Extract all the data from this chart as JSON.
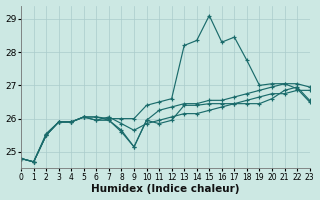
{
  "xlabel": "Humidex (Indice chaleur)",
  "bg_color": "#cce8e3",
  "grid_color": "#aacccc",
  "line_color": "#1a6b6b",
  "xlim": [
    0,
    23
  ],
  "ylim": [
    24.5,
    29.4
  ],
  "yticks": [
    25,
    26,
    27,
    28,
    29
  ],
  "xticks": [
    0,
    1,
    2,
    3,
    4,
    5,
    6,
    7,
    8,
    9,
    10,
    11,
    12,
    13,
    14,
    15,
    16,
    17,
    18,
    19,
    20,
    21,
    22,
    23
  ],
  "series": [
    [
      24.8,
      24.7,
      25.5,
      25.9,
      25.9,
      26.05,
      26.05,
      26.0,
      26.0,
      26.0,
      26.4,
      26.5,
      26.6,
      28.2,
      28.35,
      29.1,
      28.3,
      28.45,
      27.75,
      27.0,
      27.05,
      27.05,
      26.9,
      26.5
    ],
    [
      24.8,
      24.7,
      25.5,
      25.9,
      25.9,
      26.05,
      26.05,
      25.95,
      25.65,
      25.15,
      25.95,
      25.85,
      25.95,
      26.4,
      26.4,
      26.45,
      26.45,
      26.45,
      26.45,
      26.45,
      26.6,
      26.85,
      26.95,
      26.55
    ],
    [
      24.8,
      24.7,
      25.5,
      25.9,
      25.9,
      26.05,
      25.95,
      25.95,
      25.6,
      25.15,
      25.95,
      26.25,
      26.35,
      26.45,
      26.45,
      26.55,
      26.55,
      26.65,
      26.75,
      26.85,
      26.95,
      27.05,
      27.05,
      26.95
    ],
    [
      24.8,
      24.7,
      25.55,
      25.9,
      25.9,
      26.05,
      25.95,
      26.05,
      25.85,
      25.65,
      25.85,
      25.95,
      26.05,
      26.15,
      26.15,
      26.25,
      26.35,
      26.45,
      26.55,
      26.65,
      26.75,
      26.75,
      26.85,
      26.85
    ]
  ]
}
